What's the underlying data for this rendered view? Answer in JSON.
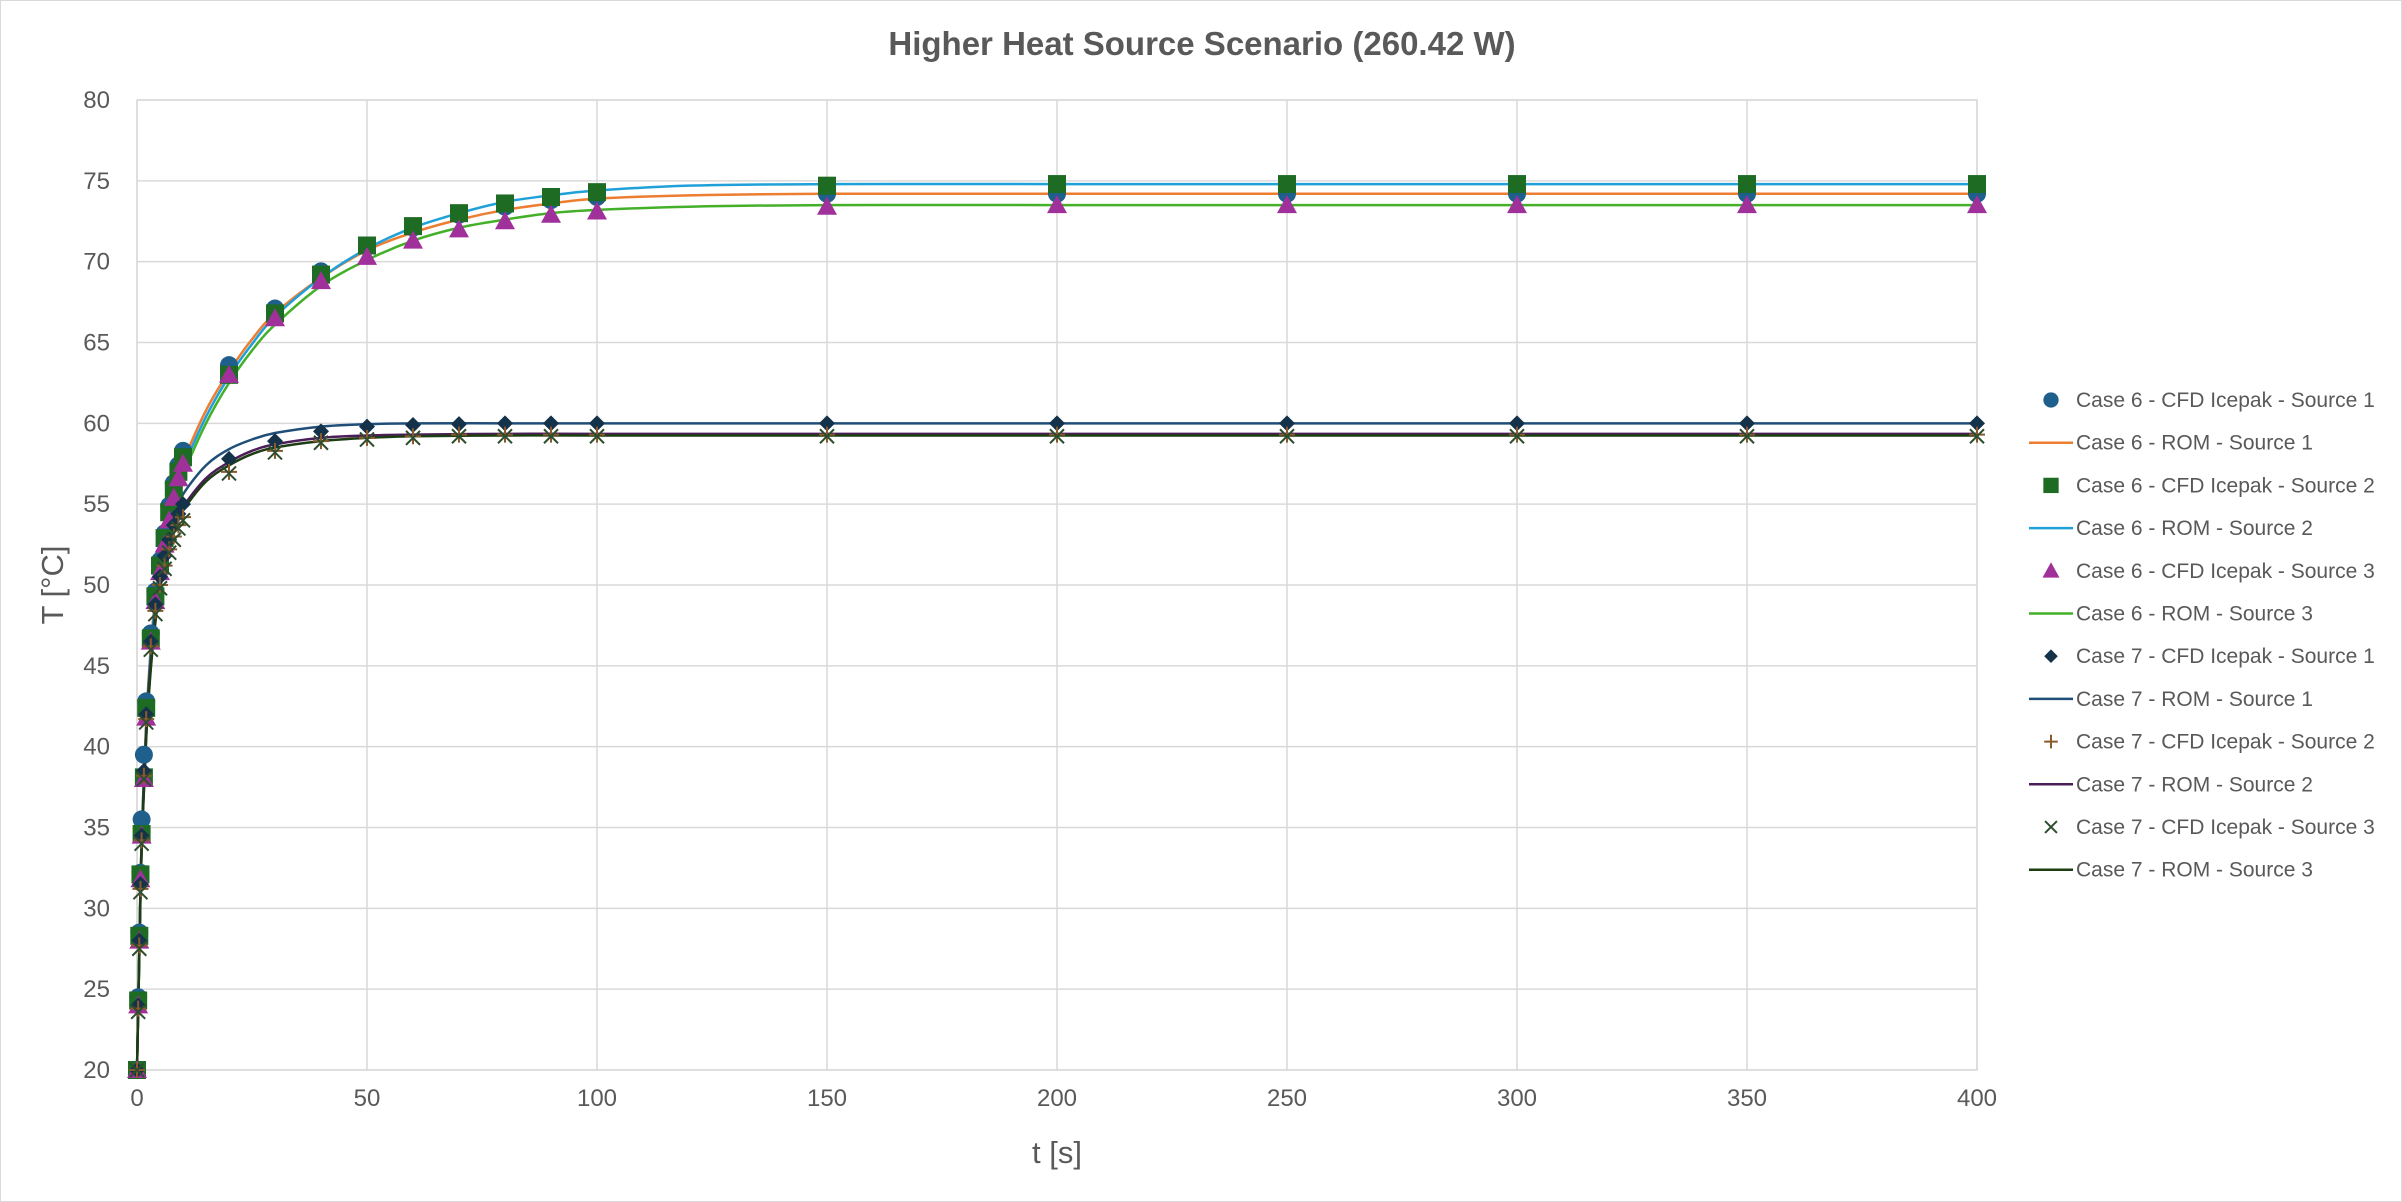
{
  "chart_data": {
    "type": "scatter",
    "title": "Higher Heat Source Scenario (260.42 W)",
    "xlabel": "t [s]",
    "ylabel": "T [°C]",
    "xlim": [
      0,
      400
    ],
    "ylim": [
      20,
      80
    ],
    "x_ticks": [
      "0",
      "50",
      "100",
      "150",
      "200",
      "250",
      "300",
      "350",
      "400"
    ],
    "y_ticks": [
      "20",
      "25",
      "30",
      "35",
      "40",
      "45",
      "50",
      "55",
      "60",
      "65",
      "70",
      "75",
      "80"
    ],
    "grid": true,
    "legend_position": "right",
    "series": [
      {
        "name": "Case 6 - CFD Icepak - Source 1",
        "kind": "marker",
        "marker": "circle",
        "color": "#1f5f8b",
        "x": [
          0,
          0.25,
          0.5,
          0.75,
          1,
          1.5,
          2,
          3,
          4,
          5,
          6,
          7,
          8,
          9,
          10,
          20,
          30,
          40,
          50,
          60,
          70,
          80,
          90,
          100,
          150,
          200,
          250,
          300,
          350,
          400
        ],
        "y": [
          20,
          24.5,
          28.5,
          32.2,
          35.5,
          39.5,
          42.8,
          47,
          49.6,
          51.5,
          53.2,
          54.9,
          56.3,
          57.4,
          58.3,
          63.6,
          67.1,
          69.4,
          71,
          72.1,
          72.9,
          73.4,
          73.8,
          74,
          74.2,
          74.2,
          74.2,
          74.2,
          74.2,
          74.2
        ]
      },
      {
        "name": "Case 6 - ROM - Source 1",
        "kind": "line",
        "color": "#ed7d31",
        "x": [
          0,
          0.5,
          1,
          2,
          3,
          4,
          5,
          6,
          8,
          10,
          15,
          20,
          25,
          30,
          40,
          50,
          60,
          70,
          80,
          90,
          100,
          120,
          150,
          200,
          250,
          300,
          350,
          400
        ],
        "y": [
          20,
          27.5,
          34.2,
          41.5,
          46.2,
          49.3,
          51.5,
          53.3,
          55.9,
          57.6,
          60.8,
          63.2,
          65.2,
          66.8,
          69,
          70.7,
          71.8,
          72.6,
          73.2,
          73.6,
          73.9,
          74.1,
          74.2,
          74.2,
          74.2,
          74.2,
          74.2,
          74.2
        ]
      },
      {
        "name": "Case 6 - CFD Icepak - Source 2",
        "kind": "marker",
        "marker": "square",
        "color": "#1e6b24",
        "x": [
          0,
          0.25,
          0.5,
          0.75,
          1,
          1.5,
          2,
          3,
          4,
          5,
          6,
          7,
          8,
          9,
          10,
          20,
          30,
          40,
          50,
          60,
          70,
          80,
          90,
          100,
          150,
          200,
          250,
          300,
          350,
          400
        ],
        "y": [
          20,
          24.3,
          28.3,
          32.1,
          34.6,
          38.1,
          42.4,
          46.7,
          49.3,
          51.2,
          52.9,
          54.5,
          55.9,
          57,
          57.9,
          63,
          66.8,
          69.2,
          71,
          72.2,
          73,
          73.6,
          74,
          74.3,
          74.7,
          74.8,
          74.8,
          74.8,
          74.8,
          74.8
        ]
      },
      {
        "name": "Case 6 - ROM - Source 2",
        "kind": "line",
        "color": "#1fa0d8",
        "x": [
          0,
          0.5,
          1,
          2,
          3,
          4,
          5,
          6,
          8,
          10,
          15,
          20,
          25,
          30,
          40,
          50,
          60,
          70,
          80,
          90,
          100,
          120,
          150,
          200,
          250,
          300,
          350,
          400
        ],
        "y": [
          20,
          27.3,
          34,
          41.2,
          45.9,
          49,
          51.2,
          53,
          55.5,
          57.2,
          60.4,
          62.9,
          64.9,
          66.6,
          69,
          70.8,
          72.1,
          73,
          73.7,
          74.1,
          74.4,
          74.7,
          74.8,
          74.8,
          74.8,
          74.8,
          74.8,
          74.8
        ]
      },
      {
        "name": "Case 6 - CFD Icepak - Source 3",
        "kind": "marker",
        "marker": "triangle",
        "color": "#a0309a",
        "x": [
          0,
          0.25,
          0.5,
          0.75,
          1,
          1.5,
          2,
          3,
          4,
          5,
          6,
          7,
          8,
          9,
          10,
          20,
          30,
          40,
          50,
          60,
          70,
          80,
          90,
          100,
          150,
          200,
          250,
          300,
          350,
          400
        ],
        "y": [
          20,
          24,
          28,
          31.8,
          34.5,
          38,
          41.8,
          46.5,
          49,
          50.8,
          52.5,
          54,
          55.4,
          56.6,
          57.5,
          63,
          66.5,
          68.8,
          70.3,
          71.3,
          72,
          72.5,
          72.9,
          73.1,
          73.4,
          73.5,
          73.5,
          73.5,
          73.5,
          73.5
        ]
      },
      {
        "name": "Case 6 - ROM - Source 3",
        "kind": "line",
        "color": "#44b02a",
        "x": [
          0,
          0.5,
          1,
          2,
          3,
          4,
          5,
          6,
          8,
          10,
          15,
          20,
          25,
          30,
          40,
          50,
          60,
          70,
          80,
          90,
          100,
          120,
          150,
          200,
          250,
          300,
          350,
          400
        ],
        "y": [
          20,
          27.2,
          33.8,
          40.9,
          45.5,
          48.6,
          50.8,
          52.6,
          55.1,
          56.8,
          60,
          62.5,
          64.5,
          66.1,
          68.5,
          70.1,
          71.3,
          72.1,
          72.6,
          73,
          73.2,
          73.4,
          73.5,
          73.5,
          73.5,
          73.5,
          73.5,
          73.5
        ]
      },
      {
        "name": "Case 7 - CFD Icepak - Source 1",
        "kind": "marker",
        "marker": "diamond",
        "color": "#14324a",
        "x": [
          0,
          0.25,
          0.5,
          0.75,
          1,
          1.5,
          2,
          3,
          4,
          5,
          6,
          7,
          8,
          9,
          10,
          20,
          30,
          40,
          50,
          60,
          70,
          80,
          90,
          100,
          150,
          200,
          250,
          300,
          350,
          400
        ],
        "y": [
          20,
          24,
          28,
          31.5,
          34.5,
          38.5,
          42,
          46.5,
          48.8,
          50.5,
          51.8,
          52.8,
          53.7,
          54.4,
          55,
          57.8,
          58.9,
          59.5,
          59.8,
          59.9,
          59.95,
          60,
          60,
          60,
          60,
          60,
          60,
          60,
          60,
          60
        ]
      },
      {
        "name": "Case 7 - ROM - Source 1",
        "kind": "line",
        "color": "#1f4e79",
        "x": [
          0,
          0.5,
          1,
          2,
          3,
          4,
          5,
          6,
          8,
          10,
          15,
          20,
          25,
          30,
          40,
          50,
          60,
          80,
          100,
          150,
          200,
          250,
          300,
          350,
          400
        ],
        "y": [
          20,
          27.5,
          34,
          41.2,
          45.6,
          48.6,
          50.6,
          52.1,
          54.2,
          55.6,
          57.4,
          58.4,
          59,
          59.4,
          59.8,
          59.95,
          60,
          60,
          60,
          60,
          60,
          60,
          60,
          60,
          60
        ]
      },
      {
        "name": "Case 7 - CFD Icepak - Source 2",
        "kind": "marker",
        "marker": "plus",
        "color": "#8b5a2b",
        "x": [
          0,
          0.25,
          0.5,
          0.75,
          1,
          1.5,
          2,
          3,
          4,
          5,
          6,
          7,
          8,
          9,
          10,
          20,
          30,
          40,
          50,
          60,
          70,
          80,
          90,
          100,
          150,
          200,
          250,
          300,
          350,
          400
        ],
        "y": [
          20,
          23.8,
          27.7,
          31.2,
          34.2,
          38.2,
          41.7,
          46.2,
          48.4,
          50,
          51.2,
          52.2,
          53,
          53.7,
          54.2,
          57,
          58.3,
          58.9,
          59.1,
          59.2,
          59.3,
          59.3,
          59.3,
          59.3,
          59.3,
          59.3,
          59.3,
          59.3,
          59.3,
          59.3
        ]
      },
      {
        "name": "Case 7 - ROM - Source 2",
        "kind": "line",
        "color": "#4b1e5a",
        "x": [
          0,
          0.5,
          1,
          2,
          3,
          4,
          5,
          6,
          8,
          10,
          15,
          20,
          25,
          30,
          40,
          50,
          60,
          80,
          100,
          150,
          200,
          250,
          300,
          350,
          400
        ],
        "y": [
          20,
          27.2,
          33.6,
          40.7,
          45,
          47.9,
          49.9,
          51.4,
          53.4,
          54.8,
          56.6,
          57.6,
          58.3,
          58.7,
          59.1,
          59.25,
          59.3,
          59.35,
          59.35,
          59.35,
          59.35,
          59.35,
          59.35,
          59.35,
          59.35
        ]
      },
      {
        "name": "Case 7 - CFD Icepak - Source 3",
        "kind": "marker",
        "marker": "x",
        "color": "#2e4d2e",
        "x": [
          0,
          0.25,
          0.5,
          0.75,
          1,
          1.5,
          2,
          3,
          4,
          5,
          6,
          7,
          8,
          9,
          10,
          20,
          30,
          40,
          50,
          60,
          70,
          80,
          90,
          100,
          150,
          200,
          250,
          300,
          350,
          400
        ],
        "y": [
          20,
          23.6,
          27.5,
          31,
          34,
          38,
          41.5,
          46,
          48.2,
          49.8,
          51,
          52,
          52.8,
          53.5,
          54,
          56.9,
          58.2,
          58.8,
          59,
          59.1,
          59.2,
          59.2,
          59.2,
          59.2,
          59.2,
          59.2,
          59.2,
          59.2,
          59.2,
          59.2
        ]
      },
      {
        "name": "Case 7 - ROM - Source 3",
        "kind": "line",
        "color": "#1d3d12",
        "x": [
          0,
          0.5,
          1,
          2,
          3,
          4,
          5,
          6,
          8,
          10,
          15,
          20,
          25,
          30,
          40,
          50,
          60,
          80,
          100,
          150,
          200,
          250,
          300,
          350,
          400
        ],
        "y": [
          20,
          27,
          33.4,
          40.5,
          44.8,
          47.7,
          49.7,
          51.2,
          53.2,
          54.6,
          56.4,
          57.4,
          58.1,
          58.5,
          58.9,
          59.1,
          59.2,
          59.25,
          59.25,
          59.25,
          59.25,
          59.25,
          59.25,
          59.25,
          59.25
        ]
      }
    ]
  }
}
